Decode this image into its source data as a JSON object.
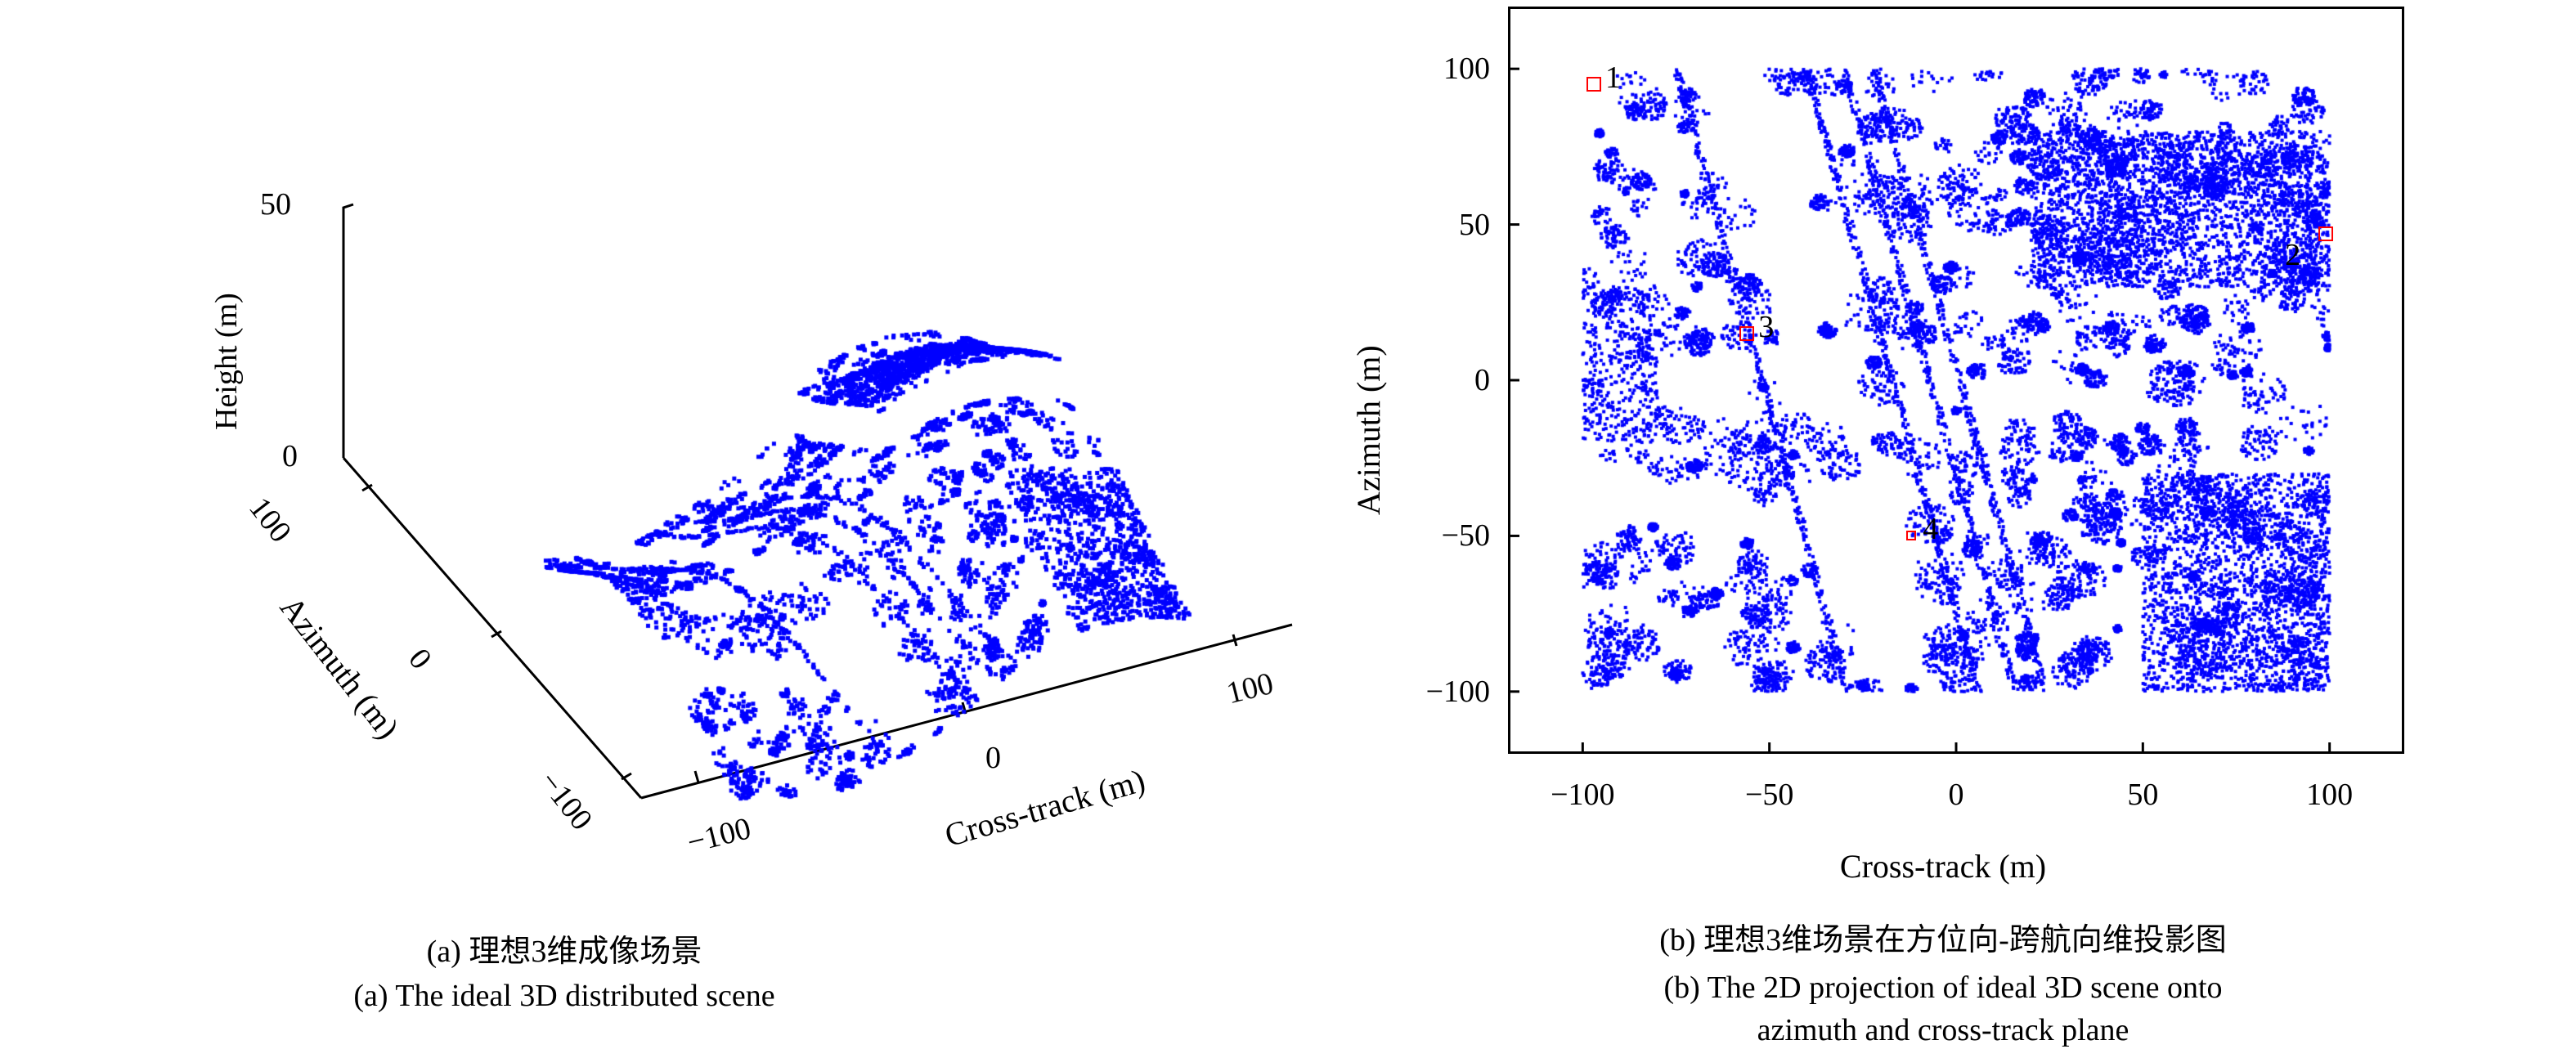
{
  "chart_data": [
    {
      "type": "scatter",
      "subtype": "3d-point-cloud",
      "title": "(a) The ideal 3D distributed scene",
      "title_cn": "(a) 理想3维成像场景",
      "xlabel": "Cross-track (m)",
      "ylabel": "Azimuth (m)",
      "zlabel": "Height (m)",
      "xticks": [
        "−100",
        "0",
        "100"
      ],
      "yticks": [
        "100",
        "0",
        "−100"
      ],
      "zticks": [
        "50",
        "0"
      ],
      "xlim": [
        -100,
        100
      ],
      "ylim": [
        -100,
        100
      ],
      "zlim": [
        0,
        50
      ],
      "point_color": "#0000ff"
    },
    {
      "type": "scatter",
      "subtype": "2d-projection",
      "title_cn": "(b) 理想3维场景在方位向-跨航向维投影图",
      "title_lines": [
        "(b) The 2D projection of ideal 3D scene onto",
        "azimuth and cross-track plane"
      ],
      "xlabel": "Cross-track (m)",
      "ylabel": "Azimuth (m)",
      "xticks": [
        "−100",
        "−50",
        "0",
        "50",
        "100"
      ],
      "yticks": [
        "100",
        "50",
        "0",
        "−50",
        "−100"
      ],
      "xlim": [
        -120,
        120
      ],
      "ylim": [
        -120,
        120
      ],
      "point_color": "#0000ff",
      "marker_color": "#ff0000",
      "markers": [
        {
          "label": "1",
          "x": -97,
          "y": 95
        },
        {
          "label": "2",
          "x": 99,
          "y": 47
        },
        {
          "label": "3",
          "x": -56,
          "y": 15
        },
        {
          "label": "4",
          "x": -12,
          "y": -50
        }
      ]
    }
  ]
}
